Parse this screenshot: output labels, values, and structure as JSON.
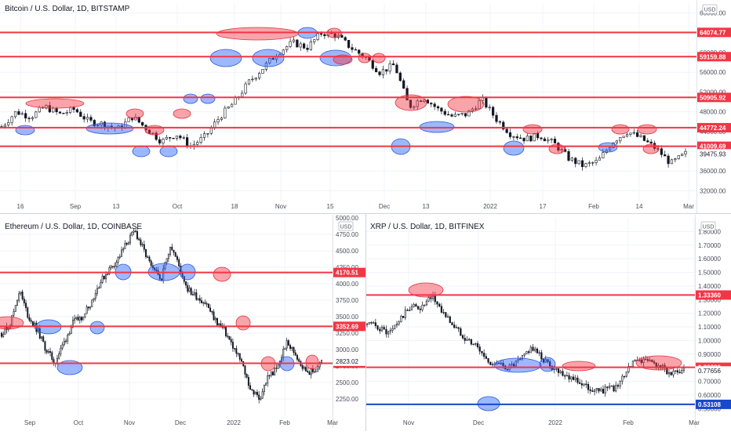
{
  "charts": [
    {
      "title": "Bitcoin / U.S. Dollar, 1D, BITSTAMP",
      "currency": "USD",
      "y_ticks": [
        "68000.00",
        "64000.00",
        "60000.00",
        "56000.00",
        "52000.00",
        "48000.00",
        "44000.00",
        "40000.00",
        "36000.00",
        "32000.00"
      ],
      "x_ticks": [
        "16",
        "Sep",
        "13",
        "Oct",
        "18",
        "Nov",
        "15",
        "Dec",
        "13",
        "2022",
        "17",
        "Feb",
        "14",
        "Mar"
      ],
      "levels": [
        {
          "label": "64074.77",
          "color": "#f23645"
        },
        {
          "label": "59159.88",
          "color": "#f23645"
        },
        {
          "label": "50905.92",
          "color": "#f23645"
        },
        {
          "label": "44772.24",
          "color": "#f23645"
        },
        {
          "label": "41009.69",
          "color": "#f23645"
        }
      ],
      "last_price": "39475.93"
    },
    {
      "title": "Ethereum / U.S. Dollar, 1D, COINBASE",
      "currency": "USD",
      "top_tick": "5000.00",
      "y_ticks": [
        "4750.00",
        "4500.00",
        "4250.00",
        "4000.00",
        "3750.00",
        "3500.00",
        "3250.00",
        "3000.00",
        "2750.00",
        "2500.00",
        "2250.00"
      ],
      "x_ticks": [
        "Sep",
        "Oct",
        "Nov",
        "Dec",
        "2022",
        "Feb",
        "Mar"
      ],
      "levels": [
        {
          "label": "4170.51",
          "color": "#f23645"
        },
        {
          "label": "3352.69",
          "color": "#f23645"
        },
        {
          "label": "2792.32",
          "color": "#f23645"
        }
      ],
      "last_price": "2823.02"
    },
    {
      "title": "XRP / U.S. Dollar, 1D, BITFINEX",
      "currency": "USD",
      "y_ticks": [
        "1.80000",
        "1.70000",
        "1.60000",
        "1.50000",
        "1.40000",
        "1.30000",
        "1.20000",
        "1.10000",
        "1.00000",
        "0.90000",
        "0.70000",
        "0.60000",
        "0.50000"
      ],
      "x_ticks": [
        "Nov",
        "Dec",
        "2022",
        "Feb",
        "Mar"
      ],
      "levels": [
        {
          "label": "1.33360",
          "color": "#f23645"
        },
        {
          "label": "0.80330",
          "color": "#f23645"
        },
        {
          "label": "0.53108",
          "color": "#1848cc"
        }
      ],
      "last_price": "0.77656"
    }
  ],
  "chart_data": [
    {
      "type": "candlestick",
      "title": "Bitcoin / U.S. Dollar, 1D, BITSTAMP",
      "ylim": [
        30000,
        70000
      ],
      "horizontal_levels": [
        64074.77,
        59159.88,
        50905.92,
        44772.24,
        41009.69
      ],
      "last_price": 39475.93,
      "close_path": [
        [
          0,
          45000
        ],
        [
          1,
          48000
        ],
        [
          2,
          47000
        ],
        [
          3,
          49000
        ],
        [
          4,
          47500
        ],
        [
          5,
          48500
        ],
        [
          6,
          46000
        ],
        [
          7,
          45500
        ],
        [
          8,
          44500
        ],
        [
          9,
          47000
        ],
        [
          10,
          44500
        ],
        [
          11,
          42000
        ],
        [
          12,
          43500
        ],
        [
          13,
          41000
        ],
        [
          14,
          43000
        ],
        [
          15,
          47000
        ],
        [
          16,
          50000
        ],
        [
          17,
          54000
        ],
        [
          18,
          57000
        ],
        [
          19,
          60000
        ],
        [
          20,
          62000
        ],
        [
          21,
          61000
        ],
        [
          22,
          64000
        ],
        [
          23,
          63500
        ],
        [
          24,
          61000
        ],
        [
          25,
          59000
        ],
        [
          26,
          56000
        ],
        [
          27,
          57500
        ],
        [
          28,
          49000
        ],
        [
          29,
          51000
        ],
        [
          30,
          48500
        ],
        [
          31,
          47000
        ],
        [
          32,
          47500
        ],
        [
          33,
          50500
        ],
        [
          34,
          46500
        ],
        [
          35,
          43500
        ],
        [
          36,
          42500
        ],
        [
          37,
          43200
        ],
        [
          38,
          41500
        ],
        [
          39,
          38500
        ],
        [
          40,
          37000
        ],
        [
          41,
          38000
        ],
        [
          42,
          42000
        ],
        [
          43,
          44000
        ],
        [
          44,
          42500
        ],
        [
          45,
          40500
        ],
        [
          46,
          37500
        ],
        [
          47,
          39475.93
        ]
      ]
    },
    {
      "type": "candlestick",
      "title": "Ethereum / U.S. Dollar, 1D, COINBASE",
      "ylim": [
        2000,
        5000
      ],
      "horizontal_levels": [
        4170.51,
        3352.69,
        2792.32
      ],
      "last_price": 2823.02,
      "close_path": [
        [
          0,
          3250
        ],
        [
          1,
          3400
        ],
        [
          2,
          3900
        ],
        [
          3,
          3500
        ],
        [
          4,
          3300
        ],
        [
          5,
          3000
        ],
        [
          6,
          2800
        ],
        [
          7,
          3100
        ],
        [
          8,
          3400
        ],
        [
          9,
          3500
        ],
        [
          10,
          3700
        ],
        [
          11,
          4000
        ],
        [
          12,
          4200
        ],
        [
          13,
          4350
        ],
        [
          14,
          4600
        ],
        [
          15,
          4800
        ],
        [
          16,
          4500
        ],
        [
          17,
          4200
        ],
        [
          18,
          4100
        ],
        [
          19,
          4600
        ],
        [
          20,
          4250
        ],
        [
          21,
          3900
        ],
        [
          22,
          3800
        ],
        [
          23,
          3700
        ],
        [
          24,
          3450
        ],
        [
          25,
          3300
        ],
        [
          26,
          3050
        ],
        [
          27,
          2800
        ],
        [
          28,
          2400
        ],
        [
          29,
          2250
        ],
        [
          30,
          2600
        ],
        [
          31,
          2700
        ],
        [
          32,
          3100
        ],
        [
          33,
          2950
        ],
        [
          34,
          2700
        ],
        [
          35,
          2650
        ],
        [
          36,
          2823.02
        ]
      ]
    },
    {
      "type": "candlestick",
      "title": "XRP / U.S. Dollar, 1D, BITFINEX",
      "ylim": [
        0.45,
        1.9
      ],
      "horizontal_levels": [
        1.3336,
        0.8033,
        0.53108
      ],
      "last_price": 0.77656,
      "close_path": [
        [
          0,
          1.12
        ],
        [
          1,
          1.1
        ],
        [
          2,
          1.05
        ],
        [
          3,
          1.15
        ],
        [
          4,
          1.25
        ],
        [
          5,
          1.24
        ],
        [
          6,
          1.32
        ],
        [
          7,
          1.2
        ],
        [
          8,
          1.1
        ],
        [
          9,
          1.02
        ],
        [
          10,
          0.96
        ],
        [
          11,
          0.85
        ],
        [
          12,
          0.82
        ],
        [
          13,
          0.8
        ],
        [
          14,
          0.85
        ],
        [
          15,
          0.95
        ],
        [
          16,
          0.87
        ],
        [
          17,
          0.8
        ],
        [
          18,
          0.76
        ],
        [
          19,
          0.72
        ],
        [
          20,
          0.66
        ],
        [
          21,
          0.63
        ],
        [
          22,
          0.64
        ],
        [
          23,
          0.66
        ],
        [
          24,
          0.82
        ],
        [
          25,
          0.86
        ],
        [
          26,
          0.84
        ],
        [
          27,
          0.8
        ],
        [
          28,
          0.75
        ],
        [
          29,
          0.77656
        ]
      ]
    }
  ]
}
